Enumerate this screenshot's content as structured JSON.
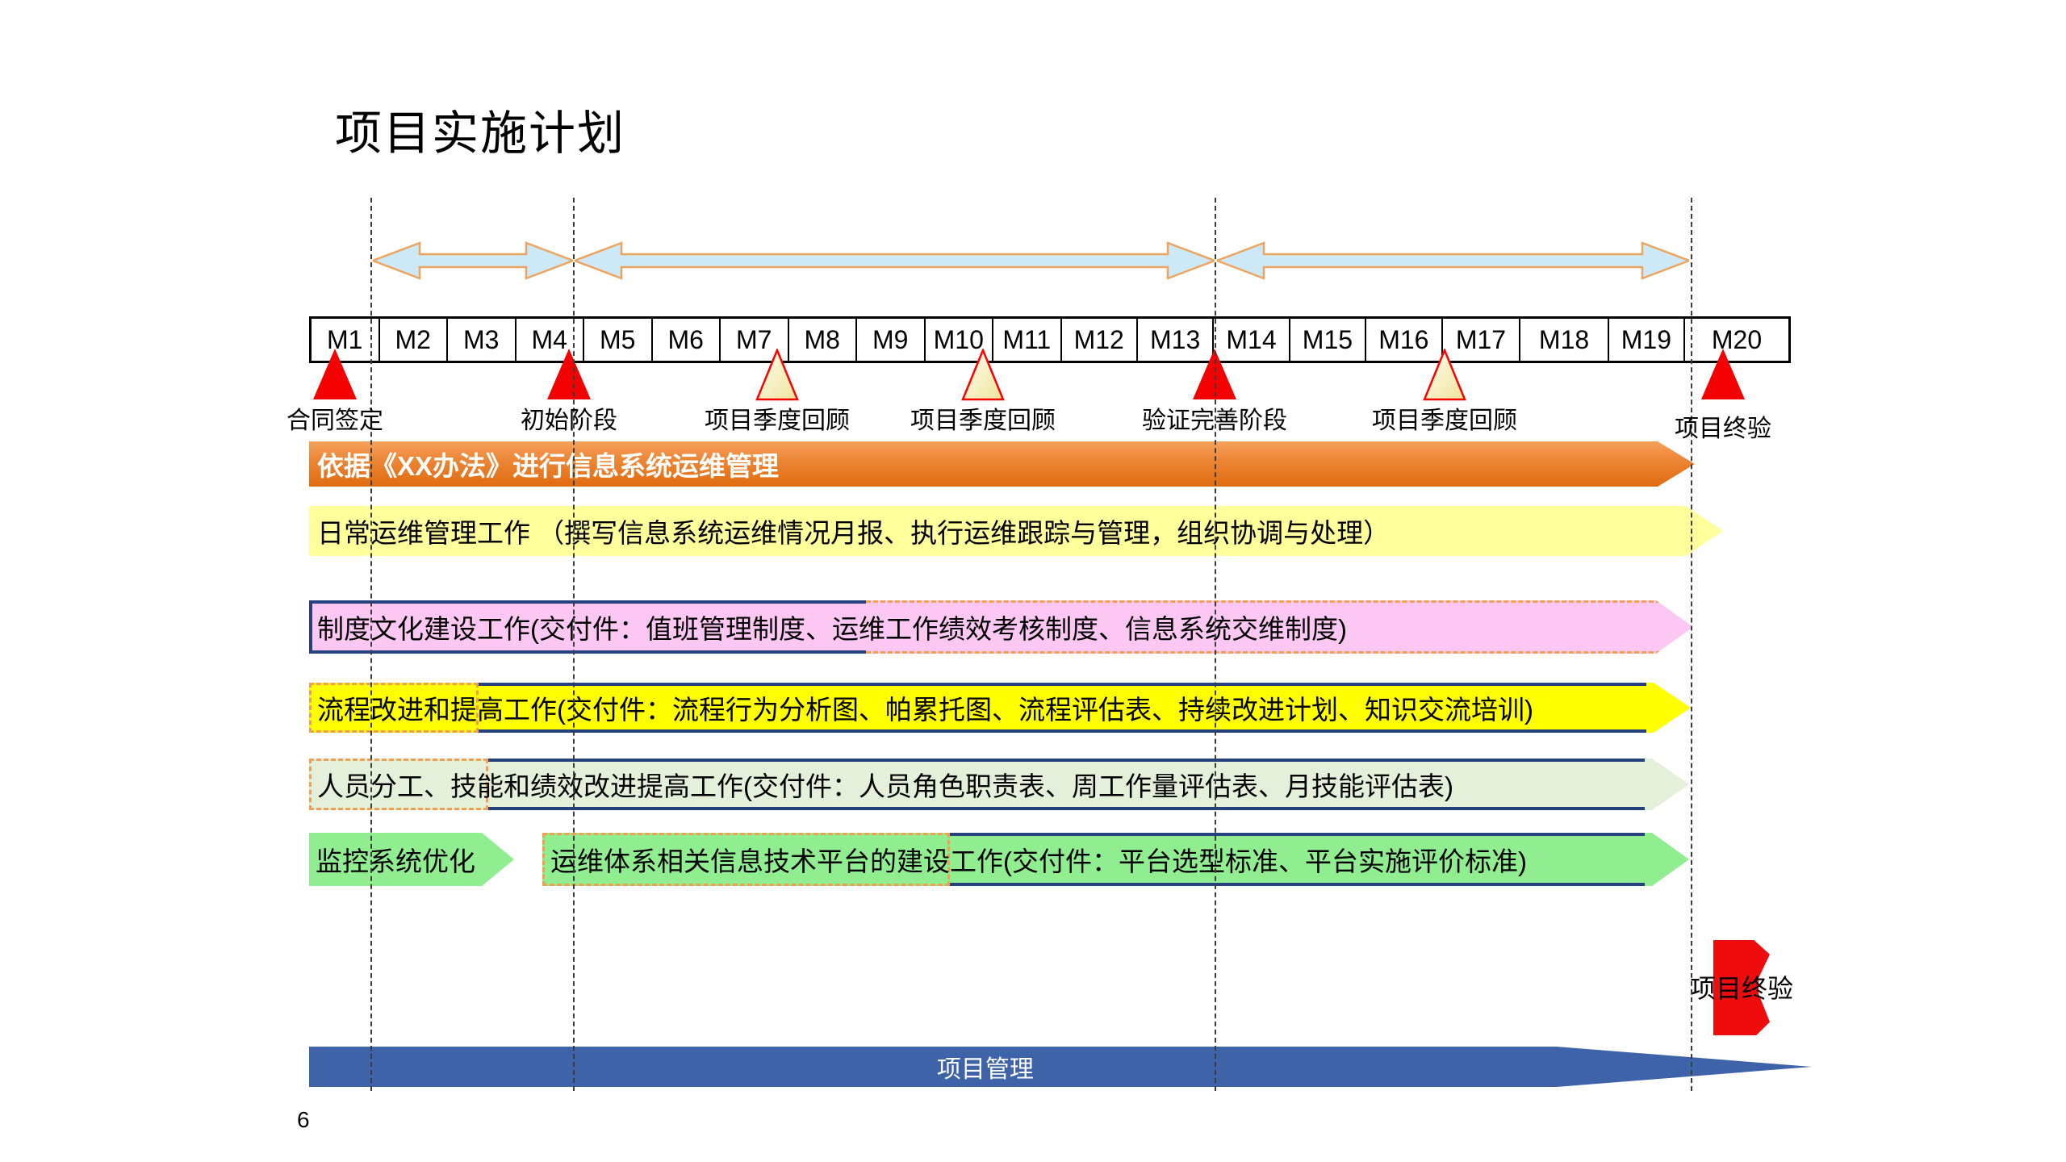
{
  "slide": {
    "title": "项目实施计划",
    "page_number": "6"
  },
  "timeline": {
    "months": [
      "M1",
      "M2",
      "M3",
      "M4",
      "M5",
      "M6",
      "M7",
      "M8",
      "M9",
      "M10",
      "M11",
      "M12",
      "M13",
      "M14",
      "M15",
      "M16",
      "M17",
      "M18",
      "M19",
      "M20"
    ]
  },
  "milestones": [
    {
      "label": "合同签定",
      "kind": "red"
    },
    {
      "label": "初始阶段",
      "kind": "red"
    },
    {
      "label": "项目季度回顾",
      "kind": "quarter"
    },
    {
      "label": "项目季度回顾",
      "kind": "quarter"
    },
    {
      "label": "验证完善阶段",
      "kind": "red"
    },
    {
      "label": "项目季度回顾",
      "kind": "quarter"
    },
    {
      "label": "项目终验",
      "kind": "red"
    }
  ],
  "bars": {
    "policy": "依据《XX办法》进行信息系统运维管理",
    "daily": "日常运维管理工作 （撰写信息系统运维情况月报、执行运维跟踪与管理，组织协调与处理）",
    "culture": "制度文化建设工作(交付件：值班管理制度、运维工作绩效考核制度、信息系统交维制度)",
    "process": "流程改进和提高工作(交付件：流程行为分析图、帕累托图、流程评估表、持续改进计划、知识交流培训)",
    "staff": "人员分工、技能和绩效改进提高工作(交付件：人员角色职责表、周工作量评估表、月技能评估表)",
    "monitor": "监控系统优化",
    "platform": "运维体系相关信息技术平台的建设工作(交付件：平台选型标准、平台实施评价标准)",
    "management": "项目管理",
    "final_acceptance": "项目终验"
  },
  "colors": {
    "orange_bar": "#e06c0e",
    "light_yellow_bar": "#ffff9c",
    "pink_bar": "#fcc7f3",
    "bright_yellow_bar": "#ffff00",
    "pale_green_bar": "#e4f0da",
    "green_bar": "#90ee90",
    "navy_border": "#26427e",
    "dashed_border_orange": "#f0a050",
    "milestone_red": "#f50000",
    "span_arrow_fill": "#cde9f7",
    "span_arrow_stroke": "#eda45e",
    "management_blue": "#3f63a8"
  }
}
